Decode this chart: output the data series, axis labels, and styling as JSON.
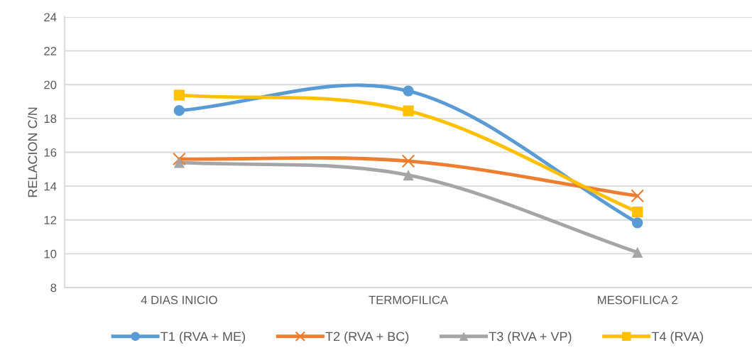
{
  "chart_data": {
    "type": "line",
    "ylabel": "RELACION C/N",
    "categories": [
      "4 DIAS INICIO",
      "TERMOFILICA",
      "MESOFILICA 2"
    ],
    "series": [
      {
        "name": "T1 (RVA + ME)",
        "color": "#5b9bd5",
        "marker": "circle",
        "values": [
          18.47,
          19.63,
          11.83
        ]
      },
      {
        "name": "T2 (RVA + BC)",
        "color": "#ed7d31",
        "marker": "cross",
        "values": [
          15.6,
          15.48,
          13.42
        ]
      },
      {
        "name": "T3 (RVA + VP)",
        "color": "#a5a5a5",
        "marker": "triangle",
        "values": [
          15.4,
          14.65,
          10.08
        ]
      },
      {
        "name": "T4 (RVA)",
        "color": "#ffc000",
        "marker": "square",
        "values": [
          19.38,
          18.45,
          12.47
        ]
      }
    ],
    "ylim": [
      8,
      24
    ],
    "yticks": [
      8,
      10,
      12,
      14,
      16,
      18,
      20,
      22,
      24
    ],
    "grid": "y",
    "legend": "bottom",
    "line_style": "solid"
  }
}
